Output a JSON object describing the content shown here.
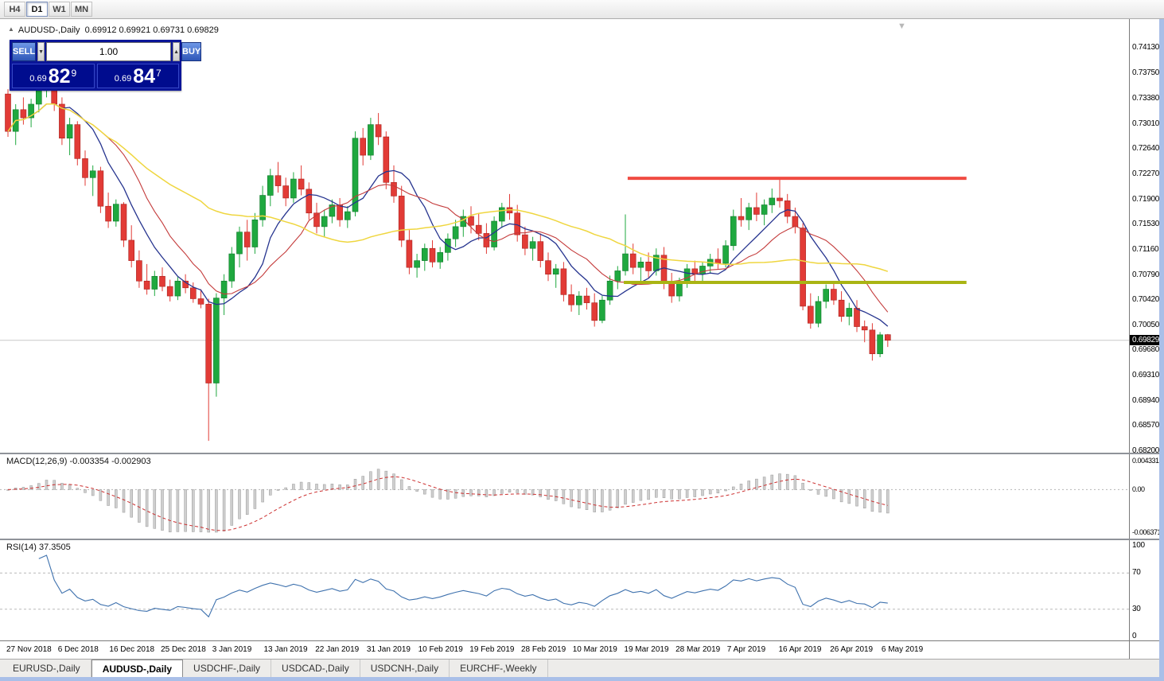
{
  "toolbar": {
    "timeframes": [
      {
        "label": "H4",
        "active": false
      },
      {
        "label": "D1",
        "active": true
      },
      {
        "label": "W1",
        "active": false
      },
      {
        "label": "MN",
        "active": false
      }
    ]
  },
  "chart_title": {
    "collapse_icon": "▲",
    "symbol": "AUDUSD-,Daily",
    "ohlc": "0.69912 0.69921 0.69731 0.69829"
  },
  "trade_panel": {
    "sell_label": "SELL",
    "buy_label": "BUY",
    "volume": "1.00",
    "bid": {
      "prefix": "0.69",
      "pips": "82",
      "point": "9"
    },
    "ask": {
      "prefix": "0.69",
      "pips": "84",
      "point": "7"
    }
  },
  "chart_data": {
    "type": "candlestick",
    "symbol": "AUDUSD-",
    "timeframe": "Daily",
    "current_price": "0.69829",
    "price_axis": {
      "max": 0.7413,
      "min": 0.682,
      "ticks": [
        "0.74130",
        "0.73750",
        "0.73380",
        "0.73010",
        "0.72640",
        "0.72270",
        "0.71900",
        "0.71530",
        "0.71160",
        "0.70790",
        "0.70420",
        "0.70050",
        "0.69680",
        "0.69310",
        "0.68940",
        "0.68570",
        "0.68200"
      ]
    },
    "colors": {
      "bull": "#1FA83F",
      "bull_dark": "#0F7A2A",
      "bear": "#E23B36",
      "bear_dark": "#A8211D",
      "price_line": "#C9C9C9"
    },
    "moving_averages": [
      {
        "period": 8,
        "color": "#26348F",
        "width": 1.3,
        "name": "ma-fast-line"
      },
      {
        "period": 13,
        "color": "#C43B3B",
        "width": 1.1,
        "name": "ma-medium-line"
      },
      {
        "period": 34,
        "color": "#EFD63F",
        "width": 1.5,
        "name": "ma-slow-line"
      }
    ],
    "hlines": [
      {
        "name": "resistance-line",
        "price": 0.7221,
        "i1": 80.3,
        "i2": 124.2,
        "color": "#F04B42",
        "width": 4
      },
      {
        "name": "support-line",
        "price": 0.7068,
        "i1": 79.8,
        "i2": 124.2,
        "color": "#A9B414",
        "width": 4
      }
    ],
    "candles": [
      [
        0.7345,
        0.7352,
        0.7282,
        0.729
      ],
      [
        0.729,
        0.733,
        0.727,
        0.7322
      ],
      [
        0.7322,
        0.734,
        0.73,
        0.731
      ],
      [
        0.731,
        0.7338,
        0.7296,
        0.733
      ],
      [
        0.733,
        0.736,
        0.7318,
        0.735
      ],
      [
        0.735,
        0.7394,
        0.734,
        0.738
      ],
      [
        0.738,
        0.7386,
        0.732,
        0.733
      ],
      [
        0.733,
        0.734,
        0.727,
        0.728
      ],
      [
        0.728,
        0.731,
        0.7255,
        0.73
      ],
      [
        0.73,
        0.7305,
        0.724,
        0.725
      ],
      [
        0.725,
        0.7262,
        0.721,
        0.7222
      ],
      [
        0.7222,
        0.724,
        0.7195,
        0.7232
      ],
      [
        0.7232,
        0.7238,
        0.717,
        0.718
      ],
      [
        0.718,
        0.72,
        0.7148,
        0.7158
      ],
      [
        0.7158,
        0.719,
        0.715,
        0.7183
      ],
      [
        0.7183,
        0.7186,
        0.712,
        0.713
      ],
      [
        0.713,
        0.7152,
        0.709,
        0.71
      ],
      [
        0.71,
        0.7115,
        0.706,
        0.707
      ],
      [
        0.707,
        0.7095,
        0.705,
        0.7058
      ],
      [
        0.7058,
        0.7085,
        0.7048,
        0.7077
      ],
      [
        0.7077,
        0.709,
        0.7055,
        0.7062
      ],
      [
        0.7062,
        0.7072,
        0.704,
        0.7048
      ],
      [
        0.7048,
        0.7076,
        0.7042,
        0.707
      ],
      [
        0.707,
        0.708,
        0.7052,
        0.706
      ],
      [
        0.706,
        0.7068,
        0.7038,
        0.7044
      ],
      [
        0.7044,
        0.7058,
        0.703,
        0.7036
      ],
      [
        0.7036,
        0.7044,
        0.6835,
        0.692
      ],
      [
        0.692,
        0.7052,
        0.69,
        0.7045
      ],
      [
        0.7045,
        0.708,
        0.702,
        0.707
      ],
      [
        0.707,
        0.712,
        0.706,
        0.711
      ],
      [
        0.711,
        0.715,
        0.709,
        0.7142
      ],
      [
        0.7142,
        0.716,
        0.71,
        0.712
      ],
      [
        0.712,
        0.717,
        0.711,
        0.716
      ],
      [
        0.716,
        0.721,
        0.715,
        0.7196
      ],
      [
        0.7196,
        0.7235,
        0.718,
        0.7225
      ],
      [
        0.7225,
        0.7245,
        0.72,
        0.721
      ],
      [
        0.721,
        0.7222,
        0.718,
        0.7192
      ],
      [
        0.7192,
        0.723,
        0.7185,
        0.722
      ],
      [
        0.722,
        0.724,
        0.7196,
        0.7205
      ],
      [
        0.7205,
        0.7215,
        0.716,
        0.717
      ],
      [
        0.717,
        0.7185,
        0.714,
        0.715
      ],
      [
        0.715,
        0.7175,
        0.7135,
        0.7165
      ],
      [
        0.7165,
        0.719,
        0.7155,
        0.7182
      ],
      [
        0.7182,
        0.7192,
        0.715,
        0.716
      ],
      [
        0.716,
        0.718,
        0.7148,
        0.7172
      ],
      [
        0.7172,
        0.729,
        0.7165,
        0.728
      ],
      [
        0.728,
        0.7295,
        0.724,
        0.7255
      ],
      [
        0.7255,
        0.731,
        0.7248,
        0.73
      ],
      [
        0.73,
        0.7317,
        0.727,
        0.7282
      ],
      [
        0.7282,
        0.729,
        0.7205,
        0.7215
      ],
      [
        0.7215,
        0.724,
        0.7185,
        0.7195
      ],
      [
        0.7195,
        0.721,
        0.712,
        0.713
      ],
      [
        0.713,
        0.7145,
        0.708,
        0.709
      ],
      [
        0.709,
        0.711,
        0.7075,
        0.71
      ],
      [
        0.71,
        0.7125,
        0.7085,
        0.7118
      ],
      [
        0.7118,
        0.713,
        0.709,
        0.7098
      ],
      [
        0.7098,
        0.712,
        0.7088,
        0.7112
      ],
      [
        0.7112,
        0.714,
        0.71,
        0.7132
      ],
      [
        0.7132,
        0.716,
        0.712,
        0.715
      ],
      [
        0.715,
        0.7175,
        0.7135,
        0.7165
      ],
      [
        0.7165,
        0.718,
        0.714,
        0.7152
      ],
      [
        0.7152,
        0.717,
        0.713,
        0.714
      ],
      [
        0.714,
        0.7155,
        0.711,
        0.712
      ],
      [
        0.712,
        0.7165,
        0.7115,
        0.7158
      ],
      [
        0.7158,
        0.7185,
        0.7148,
        0.7178
      ],
      [
        0.7178,
        0.7198,
        0.716,
        0.717
      ],
      [
        0.717,
        0.7182,
        0.7128,
        0.7138
      ],
      [
        0.7138,
        0.715,
        0.7108,
        0.7118
      ],
      [
        0.7118,
        0.7135,
        0.71,
        0.7128
      ],
      [
        0.7128,
        0.714,
        0.709,
        0.71
      ],
      [
        0.71,
        0.7112,
        0.707,
        0.708
      ],
      [
        0.708,
        0.7095,
        0.706,
        0.7088
      ],
      [
        0.7088,
        0.7098,
        0.704,
        0.705
      ],
      [
        0.705,
        0.7065,
        0.7025,
        0.7035
      ],
      [
        0.7035,
        0.7055,
        0.702,
        0.7048
      ],
      [
        0.7048,
        0.706,
        0.7028,
        0.7038
      ],
      [
        0.7038,
        0.7052,
        0.7003,
        0.7012
      ],
      [
        0.7012,
        0.7048,
        0.7008,
        0.7042
      ],
      [
        0.7042,
        0.7078,
        0.7035,
        0.707
      ],
      [
        0.707,
        0.7092,
        0.7058,
        0.7085
      ],
      [
        0.7085,
        0.7168,
        0.7078,
        0.711
      ],
      [
        0.711,
        0.7125,
        0.708,
        0.709
      ],
      [
        0.709,
        0.7105,
        0.7068,
        0.7098
      ],
      [
        0.7098,
        0.7112,
        0.7075,
        0.7085
      ],
      [
        0.7085,
        0.7118,
        0.7078,
        0.7108
      ],
      [
        0.7108,
        0.712,
        0.7058,
        0.7068
      ],
      [
        0.7068,
        0.7082,
        0.7038,
        0.7048
      ],
      [
        0.7048,
        0.7075,
        0.704,
        0.7068
      ],
      [
        0.7068,
        0.7095,
        0.706,
        0.7088
      ],
      [
        0.7088,
        0.71,
        0.707,
        0.708
      ],
      [
        0.708,
        0.7098,
        0.7068,
        0.7092
      ],
      [
        0.7092,
        0.711,
        0.7082,
        0.7102
      ],
      [
        0.7102,
        0.7118,
        0.7088,
        0.7096
      ],
      [
        0.7096,
        0.713,
        0.709,
        0.7122
      ],
      [
        0.7122,
        0.7175,
        0.7115,
        0.7165
      ],
      [
        0.7165,
        0.7192,
        0.715,
        0.716
      ],
      [
        0.716,
        0.7185,
        0.7145,
        0.7178
      ],
      [
        0.7178,
        0.72,
        0.7158,
        0.7168
      ],
      [
        0.7168,
        0.719,
        0.7152,
        0.7182
      ],
      [
        0.7182,
        0.7206,
        0.717,
        0.7192
      ],
      [
        0.7192,
        0.722,
        0.7178,
        0.7188
      ],
      [
        0.7188,
        0.7198,
        0.7155,
        0.7165
      ],
      [
        0.7165,
        0.7178,
        0.714,
        0.715
      ],
      [
        0.7148,
        0.7155,
        0.7027,
        0.7033
      ],
      [
        0.7033,
        0.7052,
        0.7,
        0.7008
      ],
      [
        0.7008,
        0.7048,
        0.7002,
        0.704
      ],
      [
        0.704,
        0.7065,
        0.703,
        0.7058
      ],
      [
        0.7058,
        0.7068,
        0.7035,
        0.7042
      ],
      [
        0.7042,
        0.7055,
        0.701,
        0.7018
      ],
      [
        0.7018,
        0.7038,
        0.7005,
        0.703
      ],
      [
        0.703,
        0.7042,
        0.6995,
        0.7003
      ],
      [
        0.7003,
        0.7012,
        0.698,
        0.6998
      ],
      [
        0.6998,
        0.7008,
        0.6953,
        0.6963
      ],
      [
        0.6963,
        0.6995,
        0.6958,
        0.6991
      ],
      [
        0.69912,
        0.69921,
        0.69731,
        0.69829
      ]
    ]
  },
  "macd": {
    "label": "MACD(12,26,9) -0.003354 -0.002903",
    "params": {
      "fast": 12,
      "slow": 26,
      "signal": 9
    },
    "value": "-0.003354",
    "signal_value": "-0.002903",
    "max": 0.004331,
    "min": -0.006371,
    "histogram_color": "#CFCFCF",
    "histogram_border": "#9A9A9A",
    "signal_color": "#CC2F2F",
    "scale": [
      {
        "t": "0.004331",
        "v": 0.004331
      },
      {
        "t": "0.00",
        "v": 0
      },
      {
        "t": "-0.006371",
        "v": -0.006371
      }
    ]
  },
  "rsi": {
    "label": "RSI(14) 37.3505",
    "period": 14,
    "value": "37.3505",
    "color": "#3F72AE",
    "levels": [
      70,
      30
    ],
    "scale": [
      {
        "t": "100",
        "v": 100
      },
      {
        "t": "70",
        "v": 70
      },
      {
        "t": "30",
        "v": 30
      },
      {
        "t": "0",
        "v": 0
      }
    ]
  },
  "dates": [
    "27 Nov 2018",
    "6 Dec 2018",
    "16 Dec 2018",
    "25 Dec 2018",
    "3 Jan 2019",
    "13 Jan 2019",
    "22 Jan 2019",
    "31 Jan 2019",
    "10 Feb 2019",
    "19 Feb 2019",
    "28 Feb 2019",
    "10 Mar 2019",
    "19 Mar 2019",
    "28 Mar 2019",
    "7 Apr 2019",
    "16 Apr 2019",
    "26 Apr 2019",
    "6 May 2019"
  ],
  "tabs": [
    {
      "label": "EURUSD-,Daily",
      "active": false
    },
    {
      "label": "AUDUSD-,Daily",
      "active": true
    },
    {
      "label": "USDCHF-,Daily",
      "active": false
    },
    {
      "label": "USDCAD-,Daily",
      "active": false
    },
    {
      "label": "USDCNH-,Daily",
      "active": false
    },
    {
      "label": "EURCHF-,Weekly",
      "active": false
    }
  ]
}
